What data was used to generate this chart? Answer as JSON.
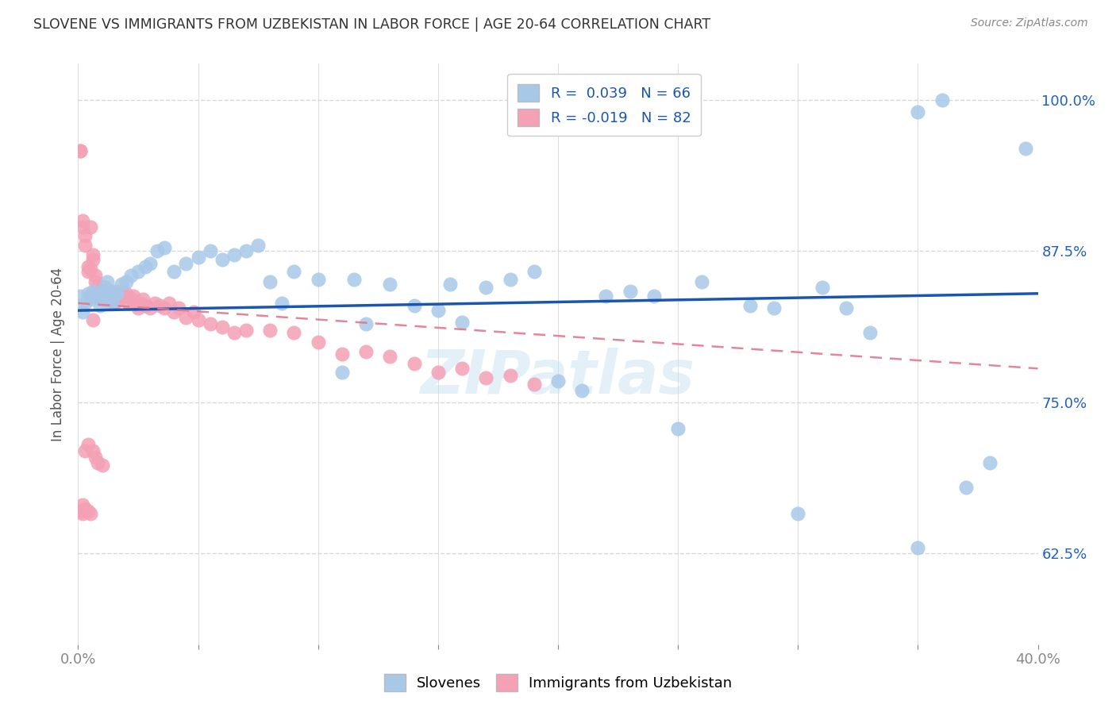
{
  "title": "SLOVENE VS IMMIGRANTS FROM UZBEKISTAN IN LABOR FORCE | AGE 20-64 CORRELATION CHART",
  "source": "Source: ZipAtlas.com",
  "ylabel": "In Labor Force | Age 20-64",
  "x_min": 0.0,
  "x_max": 0.4,
  "y_min": 0.55,
  "y_max": 1.03,
  "y_ticks": [
    0.625,
    0.75,
    0.875,
    1.0
  ],
  "y_tick_labels": [
    "62.5%",
    "75.0%",
    "87.5%",
    "100.0%"
  ],
  "slovene_color": "#a8c8e8",
  "uzbekistan_color": "#f4a0b5",
  "slovene_line_color": "#1a56b0",
  "uzbekistan_line_color": "#e07890",
  "legend_R_slovene": "R =  0.039",
  "legend_N_slovene": "N = 66",
  "legend_R_uzbekistan": "R = -0.019",
  "legend_N_uzbekistan": "N = 82",
  "slovene_line_x": [
    0.0,
    0.4
  ],
  "slovene_line_y": [
    0.826,
    0.84
  ],
  "uzbekistan_line_x": [
    0.0,
    0.4
  ],
  "uzbekistan_line_y": [
    0.832,
    0.778
  ],
  "slovene_x": [
    0.001,
    0.002,
    0.003,
    0.004,
    0.005,
    0.006,
    0.007,
    0.008,
    0.009,
    0.01,
    0.011,
    0.012,
    0.013,
    0.014,
    0.015,
    0.016,
    0.018,
    0.02,
    0.022,
    0.025,
    0.028,
    0.03,
    0.033,
    0.036,
    0.04,
    0.045,
    0.05,
    0.055,
    0.06,
    0.065,
    0.07,
    0.075,
    0.08,
    0.085,
    0.09,
    0.1,
    0.11,
    0.115,
    0.12,
    0.13,
    0.14,
    0.15,
    0.155,
    0.16,
    0.17,
    0.18,
    0.19,
    0.2,
    0.21,
    0.22,
    0.23,
    0.24,
    0.25,
    0.26,
    0.28,
    0.29,
    0.3,
    0.31,
    0.32,
    0.33,
    0.35,
    0.37,
    0.38,
    0.395,
    0.35,
    0.36
  ],
  "slovene_y": [
    0.838,
    0.825,
    0.832,
    0.84,
    0.835,
    0.842,
    0.838,
    0.836,
    0.83,
    0.84,
    0.845,
    0.85,
    0.838,
    0.832,
    0.842,
    0.84,
    0.848,
    0.85,
    0.855,
    0.858,
    0.862,
    0.865,
    0.875,
    0.878,
    0.858,
    0.865,
    0.87,
    0.875,
    0.868,
    0.872,
    0.875,
    0.88,
    0.85,
    0.832,
    0.858,
    0.852,
    0.775,
    0.852,
    0.815,
    0.848,
    0.83,
    0.826,
    0.848,
    0.816,
    0.845,
    0.852,
    0.858,
    0.768,
    0.76,
    0.838,
    0.842,
    0.838,
    0.728,
    0.85,
    0.83,
    0.828,
    0.658,
    0.845,
    0.828,
    0.808,
    0.63,
    0.68,
    0.7,
    0.96,
    0.99,
    1.0
  ],
  "uzbekistan_x": [
    0.001,
    0.001,
    0.002,
    0.002,
    0.003,
    0.003,
    0.004,
    0.004,
    0.005,
    0.005,
    0.006,
    0.006,
    0.007,
    0.007,
    0.008,
    0.008,
    0.009,
    0.009,
    0.01,
    0.01,
    0.011,
    0.011,
    0.012,
    0.012,
    0.013,
    0.013,
    0.014,
    0.015,
    0.015,
    0.016,
    0.017,
    0.018,
    0.019,
    0.02,
    0.021,
    0.022,
    0.023,
    0.024,
    0.025,
    0.026,
    0.027,
    0.028,
    0.03,
    0.032,
    0.034,
    0.036,
    0.038,
    0.04,
    0.042,
    0.045,
    0.048,
    0.05,
    0.055,
    0.06,
    0.065,
    0.07,
    0.08,
    0.09,
    0.1,
    0.11,
    0.12,
    0.13,
    0.14,
    0.15,
    0.16,
    0.17,
    0.18,
    0.19,
    0.005,
    0.006,
    0.003,
    0.004,
    0.006,
    0.007,
    0.008,
    0.01,
    0.002,
    0.003,
    0.004,
    0.005,
    0.001,
    0.002
  ],
  "uzbekistan_y": [
    0.958,
    0.958,
    0.9,
    0.895,
    0.88,
    0.888,
    0.862,
    0.858,
    0.895,
    0.86,
    0.872,
    0.868,
    0.855,
    0.85,
    0.84,
    0.845,
    0.838,
    0.842,
    0.835,
    0.84,
    0.845,
    0.838,
    0.84,
    0.835,
    0.842,
    0.838,
    0.835,
    0.838,
    0.832,
    0.84,
    0.835,
    0.842,
    0.838,
    0.84,
    0.832,
    0.836,
    0.838,
    0.832,
    0.828,
    0.832,
    0.835,
    0.83,
    0.828,
    0.832,
    0.83,
    0.828,
    0.832,
    0.825,
    0.828,
    0.82,
    0.825,
    0.818,
    0.815,
    0.812,
    0.808,
    0.81,
    0.81,
    0.808,
    0.8,
    0.79,
    0.792,
    0.788,
    0.782,
    0.775,
    0.778,
    0.77,
    0.772,
    0.765,
    0.838,
    0.818,
    0.71,
    0.715,
    0.71,
    0.705,
    0.7,
    0.698,
    0.665,
    0.662,
    0.66,
    0.658,
    0.66,
    0.658
  ],
  "watermark": "ZIPatlas",
  "background_color": "#ffffff",
  "grid_color": "#d8d8d8"
}
